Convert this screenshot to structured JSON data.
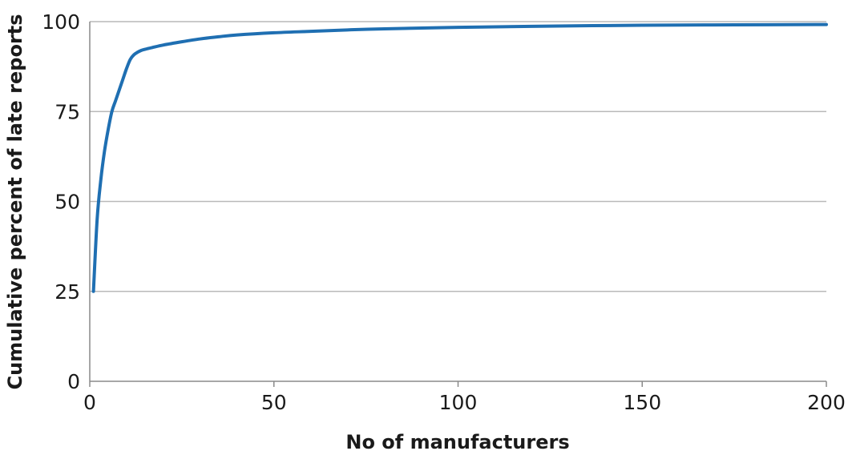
{
  "chart_data": {
    "type": "line",
    "xlabel": "No of manufacturers",
    "ylabel": "Cumulative percent of late reports",
    "xlim": [
      0,
      200
    ],
    "ylim": [
      0,
      100
    ],
    "xticks": [
      0,
      50,
      100,
      150,
      200
    ],
    "yticks": [
      0,
      25,
      50,
      75,
      100
    ],
    "x_tick_labels": [
      "0",
      "50",
      "100",
      "150",
      "200"
    ],
    "y_tick_labels": [
      "0",
      "25",
      "50",
      "75",
      "100"
    ],
    "grid": "horizontal",
    "legend": "none",
    "series": [
      {
        "color": "#1f6fb2",
        "x": [
          1,
          2,
          3,
          4,
          5,
          6,
          7,
          8,
          9,
          10,
          11,
          12,
          13,
          14,
          15,
          17,
          20,
          25,
          30,
          35,
          40,
          50,
          60,
          70,
          80,
          100,
          120,
          150,
          175,
          200
        ],
        "y": [
          25,
          45,
          56,
          64,
          70,
          75,
          78,
          81,
          84,
          87,
          89.5,
          90.8,
          91.5,
          92,
          92.3,
          92.8,
          93.5,
          94.4,
          95.2,
          95.8,
          96.3,
          96.9,
          97.3,
          97.7,
          98.0,
          98.4,
          98.7,
          99.0,
          99.1,
          99.2
        ]
      }
    ]
  }
}
